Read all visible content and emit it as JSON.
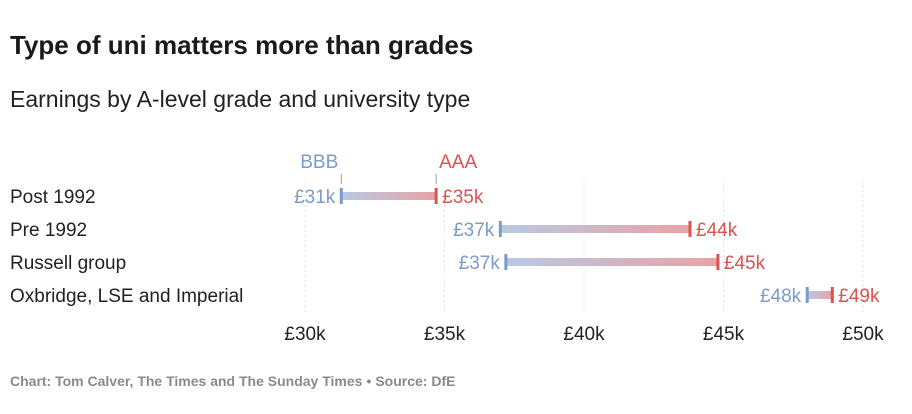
{
  "title": "Type of uni matters more than grades",
  "subtitle": "Earnings by A-level grade and university type",
  "footer": {
    "credit": "Chart: Tom Calver, The Times and The Sunday Times",
    "separator": "•",
    "source": "Source: DfE"
  },
  "colors": {
    "low": "#7a9cc6",
    "high": "#d9534f",
    "bar_low": "#b8c9e3",
    "bar_high": "#e8a3a6",
    "grid": "#e3e3e3",
    "marker_line": "#9a9a9a"
  },
  "chart_data": {
    "type": "dumbbell",
    "xlim": [
      30,
      50
    ],
    "x_ticks": [
      30,
      35,
      40,
      45,
      50
    ],
    "x_tick_labels": [
      "£30k",
      "£35k",
      "£40k",
      "£45k",
      "£50k"
    ],
    "series": [
      {
        "name": "BBB",
        "key": "low"
      },
      {
        "name": "AAA",
        "key": "high"
      }
    ],
    "rows": [
      {
        "category": "Post 1992",
        "low": 31.3,
        "high": 34.7,
        "low_label": "£31k",
        "high_label": "£35k"
      },
      {
        "category": "Pre 1992",
        "low": 37.0,
        "high": 43.8,
        "low_label": "£37k",
        "high_label": "£44k"
      },
      {
        "category": "Russell group",
        "low": 37.2,
        "high": 44.8,
        "low_label": "£37k",
        "high_label": "£45k"
      },
      {
        "category": "Oxbridge, LSE and Imperial",
        "low": 48.0,
        "high": 48.9,
        "low_label": "£48k",
        "high_label": "£49k"
      }
    ]
  }
}
